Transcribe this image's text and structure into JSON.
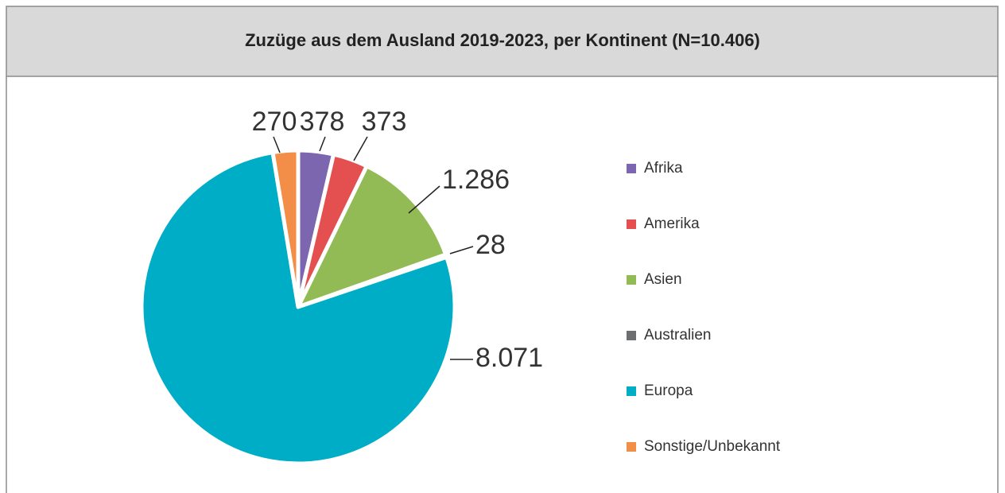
{
  "chart_data": {
    "type": "pie",
    "title": "Zuzüge aus dem Ausland 2019-2023, per Kontinent (N=10.406)",
    "categories": [
      "Afrika",
      "Amerika",
      "Asien",
      "Australien",
      "Europa",
      "Sonstige/Unbekannt"
    ],
    "values": [
      378,
      373,
      1286,
      28,
      8071,
      270
    ],
    "value_labels": [
      "378",
      "373",
      "1.286",
      "28",
      "8.071",
      "270"
    ],
    "colors": [
      "#7d66b0",
      "#e4504f",
      "#92bb55",
      "#6d6e70",
      "#00adc6",
      "#f28e47"
    ],
    "legend": "right"
  }
}
